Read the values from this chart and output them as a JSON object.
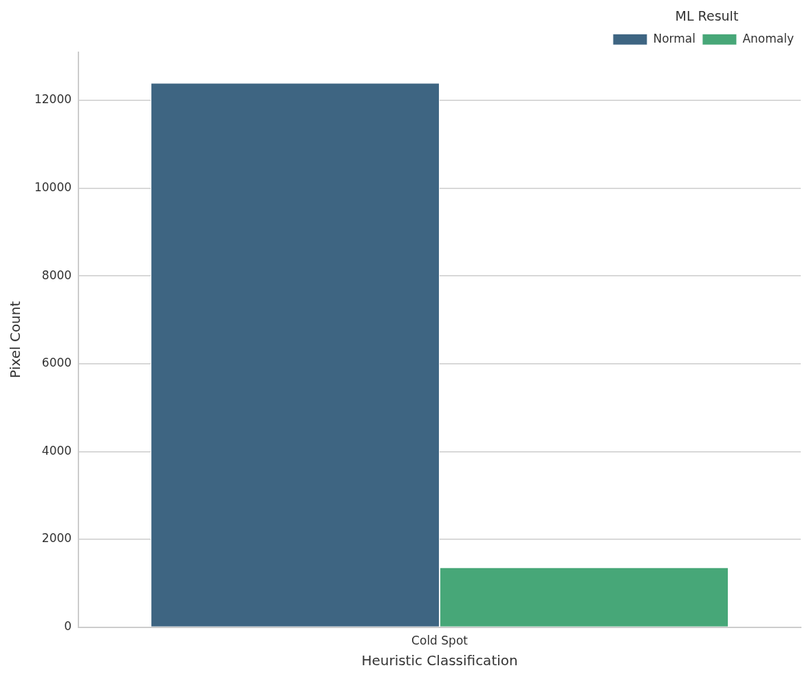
{
  "chart_data": {
    "type": "bar",
    "xlabel": "Heuristic Classification",
    "ylabel": "Pixel Count",
    "legend_title": "ML Result",
    "categories": [
      "Cold Spot"
    ],
    "series": [
      {
        "name": "Normal",
        "color": "#3e6582",
        "values": [
          12400
        ]
      },
      {
        "name": "Anomaly",
        "color": "#47a778",
        "values": [
          1360
        ]
      }
    ],
    "ylim": [
      0,
      13100
    ],
    "yticks": [
      0,
      2000,
      4000,
      6000,
      8000,
      10000,
      12000
    ],
    "grid": "y",
    "legend": "top right"
  }
}
